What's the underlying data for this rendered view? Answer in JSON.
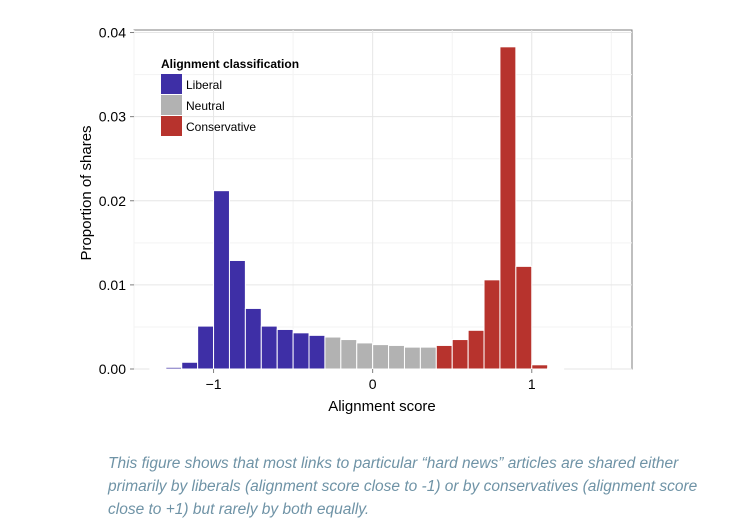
{
  "chart_data": {
    "type": "bar",
    "title": "",
    "xlabel": "Alignment score",
    "ylabel": "Proportion of shares",
    "xlim": [
      -1.5,
      1.63
    ],
    "ylim": [
      0,
      0.0403
    ],
    "x_ticks": [
      -1,
      0,
      1
    ],
    "x_tick_labels": [
      "−1",
      "0",
      "1"
    ],
    "y_ticks": [
      0,
      0.01,
      0.02,
      0.03,
      0.04
    ],
    "y_tick_labels": [
      "0.00",
      "0.01",
      "0.02",
      "0.03",
      "0.04"
    ],
    "grid": true,
    "bin_width": 0.1,
    "legend": {
      "title": "Alignment classification",
      "position": "top-left",
      "entries": [
        "Liberal",
        "Neutral",
        "Conservative"
      ]
    },
    "colors": {
      "Liberal": "#3e2fa6",
      "Neutral": "#b2b2b2",
      "Conservative": "#b7332d"
    },
    "bins": [
      {
        "x": -1.35,
        "value": 0.0001,
        "class": "Liberal"
      },
      {
        "x": -1.25,
        "value": 0.0002,
        "class": "Liberal"
      },
      {
        "x": -1.15,
        "value": 0.0008,
        "class": "Liberal"
      },
      {
        "x": -1.05,
        "value": 0.0051,
        "class": "Liberal"
      },
      {
        "x": -0.95,
        "value": 0.0212,
        "class": "Liberal"
      },
      {
        "x": -0.85,
        "value": 0.0129,
        "class": "Liberal"
      },
      {
        "x": -0.75,
        "value": 0.0072,
        "class": "Liberal"
      },
      {
        "x": -0.65,
        "value": 0.0051,
        "class": "Liberal"
      },
      {
        "x": -0.55,
        "value": 0.0047,
        "class": "Liberal"
      },
      {
        "x": -0.45,
        "value": 0.0043,
        "class": "Liberal"
      },
      {
        "x": -0.35,
        "value": 0.004,
        "class": "Liberal"
      },
      {
        "x": -0.25,
        "value": 0.0038,
        "class": "Neutral"
      },
      {
        "x": -0.15,
        "value": 0.0035,
        "class": "Neutral"
      },
      {
        "x": -0.05,
        "value": 0.0031,
        "class": "Neutral"
      },
      {
        "x": 0.05,
        "value": 0.0029,
        "class": "Neutral"
      },
      {
        "x": 0.15,
        "value": 0.0028,
        "class": "Neutral"
      },
      {
        "x": 0.25,
        "value": 0.0026,
        "class": "Neutral"
      },
      {
        "x": 0.35,
        "value": 0.0026,
        "class": "Neutral"
      },
      {
        "x": 0.45,
        "value": 0.0028,
        "class": "Conservative"
      },
      {
        "x": 0.55,
        "value": 0.0035,
        "class": "Conservative"
      },
      {
        "x": 0.65,
        "value": 0.0046,
        "class": "Conservative"
      },
      {
        "x": 0.75,
        "value": 0.0106,
        "class": "Conservative"
      },
      {
        "x": 0.85,
        "value": 0.0383,
        "class": "Conservative"
      },
      {
        "x": 0.95,
        "value": 0.0122,
        "class": "Conservative"
      },
      {
        "x": 1.05,
        "value": 0.0005,
        "class": "Conservative"
      },
      {
        "x": 1.15,
        "value": 0.0001,
        "class": "Conservative"
      }
    ]
  },
  "caption": "This figure shows that most links to particular “hard news” articles are shared either primarily by liberals (alignment score close to -1) or by conservatives (alignment score close to +1) but rarely by both equally."
}
